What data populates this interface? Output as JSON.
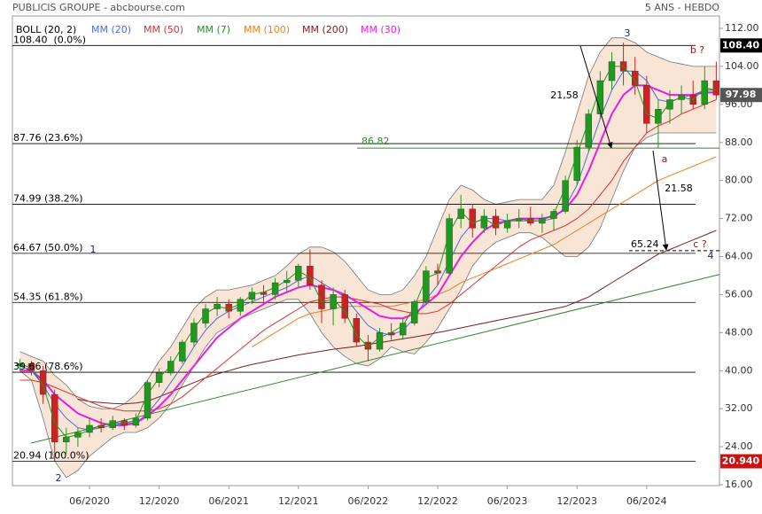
{
  "chart_data": {
    "type": "candlestick",
    "title": "PUBLICIS GROUPE - abcbourse.com",
    "subtitle": "5 ANS - HEBDO",
    "categories": [
      null,
      null,
      null,
      null,
      null,
      null,
      "06/2020",
      null,
      null,
      null,
      null,
      null,
      "12/2020",
      null,
      null,
      null,
      null,
      null,
      "06/2021",
      null,
      null,
      null,
      null,
      null,
      "12/2021",
      null,
      null,
      null,
      null,
      null,
      "06/2022",
      null,
      null,
      null,
      null,
      null,
      "12/2022",
      null,
      null,
      null,
      null,
      null,
      "06/2023",
      null,
      null,
      null,
      null,
      null,
      "12/2023",
      null,
      null,
      null,
      null,
      null,
      "06/2024",
      null,
      null,
      null,
      null,
      null,
      null
    ],
    "candles": {
      "up_color": "#1e9a1e",
      "down_color": "#cc2222",
      "open": [
        41,
        41.5,
        40,
        35,
        25,
        26,
        27,
        28.5,
        28,
        29.5,
        28.5,
        30,
        37.5,
        39.5,
        42,
        46,
        50,
        53,
        54,
        52.5,
        55,
        56.5,
        56,
        58.5,
        59,
        62,
        58,
        53,
        56,
        51,
        46,
        44.5,
        48,
        47.5,
        50,
        54.5,
        61,
        60.5,
        72,
        74,
        70,
        72.5,
        70,
        71.5,
        72,
        71,
        72,
        73.5,
        80,
        87,
        94,
        101,
        105,
        103,
        100,
        92,
        95,
        97,
        98,
        96,
        101
      ],
      "high": [
        42.5,
        42,
        41,
        36,
        28,
        28,
        30,
        30,
        30.5,
        30,
        31,
        38,
        40.5,
        43,
        46.5,
        51,
        54,
        55.5,
        55,
        55.5,
        57.5,
        58,
        59.5,
        61,
        62.5,
        65.5,
        59,
        57.5,
        57,
        52,
        47.5,
        49,
        50,
        51,
        55,
        62,
        62.5,
        73,
        77,
        75,
        74,
        74,
        73,
        74,
        74.5,
        73,
        74,
        81,
        88.5,
        95,
        103,
        107,
        109,
        106,
        102,
        97,
        99,
        100,
        101,
        104,
        105
      ],
      "low": [
        40,
        39,
        33,
        21,
        22.5,
        24,
        26,
        27,
        27.5,
        27.5,
        28,
        29.5,
        36.5,
        39,
        41.5,
        45,
        49,
        51.5,
        51,
        51.5,
        54,
        54.5,
        55,
        56.5,
        57.5,
        57,
        50,
        49.5,
        50,
        45,
        42,
        44,
        46.5,
        46.5,
        49.5,
        54,
        58,
        60,
        70,
        68,
        69,
        68.5,
        69,
        70,
        70.5,
        69,
        69.5,
        73,
        79,
        86,
        93,
        99,
        100,
        98,
        90,
        86.8,
        92,
        94,
        95,
        95,
        97
      ],
      "close": [
        41.5,
        40,
        35,
        25,
        26,
        27,
        28.5,
        28,
        29.5,
        28.5,
        30,
        37.5,
        39.5,
        42,
        46,
        50,
        53,
        54,
        52.5,
        55,
        56.5,
        56,
        58.5,
        59,
        62,
        58,
        53,
        56,
        51,
        46,
        44.5,
        48,
        47.5,
        50,
        54.5,
        61,
        60.5,
        72,
        74,
        70,
        72.5,
        70,
        71.5,
        72,
        71,
        72,
        73.5,
        80,
        87,
        94,
        101,
        105,
        103,
        100,
        92,
        95,
        97,
        98,
        96,
        101,
        97.98
      ]
    },
    "bollinger": {
      "name": "BOLL (20, 2)",
      "color": "#000000",
      "line_color": "#777777",
      "band_color": "#f6dcc8",
      "upper": [
        44,
        43,
        42,
        39,
        37,
        34,
        32.5,
        32,
        32,
        33,
        35,
        38,
        42,
        45,
        49,
        53,
        55.5,
        57,
        57,
        57.5,
        58,
        59,
        60,
        62,
        64.5,
        66,
        66,
        65,
        63,
        60,
        57,
        56,
        56,
        57,
        60,
        64,
        70,
        76,
        79,
        78,
        76,
        75,
        75.5,
        76,
        76,
        76,
        79,
        86,
        94,
        102,
        107,
        110,
        110,
        109,
        107,
        106,
        105,
        104.5,
        104,
        104,
        104
      ],
      "lower": [
        40,
        38,
        30,
        21,
        17.5,
        19,
        22,
        24,
        26,
        27,
        27,
        28,
        30,
        33,
        37,
        41,
        45,
        48,
        49.5,
        51,
        52,
        53,
        54,
        55,
        55,
        52,
        48,
        45,
        43,
        41.5,
        41,
        42.5,
        45,
        44,
        43.5,
        46,
        49,
        53,
        57,
        62,
        65,
        67,
        68,
        69,
        69,
        68,
        66,
        64,
        64,
        66,
        70,
        76,
        82,
        87,
        89,
        90,
        90,
        90,
        90,
        90,
        90
      ]
    },
    "series": [
      {
        "name": "MM (20)",
        "color": "#4a6fe0",
        "values": [
          41,
          40,
          37,
          33,
          30,
          28,
          27.5,
          28,
          28.5,
          29,
          29,
          31,
          34,
          37.5,
          41,
          45,
          48.5,
          51,
          52.5,
          53.5,
          54.5,
          55.5,
          56.5,
          57.5,
          59,
          60,
          58.5,
          57,
          55.5,
          52.5,
          49.5,
          48,
          47.5,
          48.5,
          51,
          55,
          58,
          63,
          68,
          71,
          72,
          72,
          71.5,
          71.5,
          71.5,
          71.5,
          72,
          74.5,
          79,
          86,
          93,
          99,
          103,
          103,
          101,
          97,
          96.5,
          97.5,
          98,
          99,
          99
        ]
      },
      {
        "name": "MM (50)",
        "color": "#e03030",
        "values": [
          38,
          38,
          37.5,
          36.5,
          35.5,
          34.5,
          33.5,
          32.5,
          32,
          31.5,
          31.5,
          31.5,
          32,
          33,
          34.5,
          36.5,
          38.5,
          40.5,
          42.5,
          44.5,
          46.5,
          48.5,
          50,
          51.5,
          53,
          54.5,
          55,
          55.5,
          55.5,
          55,
          54.5,
          54,
          53,
          52.5,
          52,
          52,
          52.5,
          54,
          56,
          58,
          60,
          62,
          64,
          66,
          67.5,
          68.5,
          69.5,
          70.5,
          72,
          74,
          77,
          80,
          84,
          87,
          90,
          91.5,
          92.5,
          94,
          95,
          96,
          97
        ]
      },
      {
        "name": "MM (7)",
        "color": "#1a9a1a",
        "values": [
          41.5,
          40.5,
          37,
          29,
          26,
          26.5,
          27.5,
          28.5,
          29,
          29,
          29.5,
          35,
          38.5,
          41,
          45,
          49,
          52,
          53.5,
          53,
          54,
          56,
          56.5,
          57.5,
          59,
          61,
          59.5,
          54.5,
          55,
          52.5,
          47.5,
          45,
          47,
          48,
          49.5,
          53.5,
          59.5,
          60.5,
          69,
          73.5,
          71,
          72,
          70.5,
          71.5,
          72,
          71.5,
          71.5,
          73,
          78.5,
          85.5,
          92.5,
          99.5,
          104,
          104,
          101,
          94,
          93,
          96.5,
          97.5,
          97,
          99.5,
          99
        ]
      },
      {
        "name": "MM (100)",
        "color": "#f07d1e",
        "values": [
          null,
          null,
          null,
          null,
          null,
          null,
          null,
          null,
          null,
          null,
          null,
          null,
          null,
          null,
          null,
          null,
          null,
          null,
          null,
          null,
          45,
          46.5,
          48,
          49.5,
          51,
          52,
          52.5,
          53,
          53.5,
          53.5,
          53.5,
          53.5,
          53.5,
          54,
          54.5,
          55,
          56,
          57,
          58.5,
          59.5,
          60.5,
          61.5,
          62.5,
          63.5,
          64.5,
          65.5,
          66.5,
          68,
          69.5,
          71,
          72.5,
          74,
          75.5,
          77,
          78.5,
          80,
          81,
          82,
          83,
          84,
          85
        ]
      },
      {
        "name": "MM (200)",
        "color": "#7a1f1f",
        "values": [
          null,
          null,
          null,
          null,
          null,
          34,
          33.5,
          33.3,
          33.1,
          33,
          33.2,
          33.6,
          34.5,
          35.5,
          36.5,
          37.5,
          38.5,
          39.3,
          40,
          40.7,
          41.3,
          41.8,
          42.3,
          42.8,
          43.3,
          43.7,
          44.1,
          44.5,
          44.8,
          45.1,
          45.5,
          45.9,
          46.3,
          46.7,
          47.1,
          47.5,
          48,
          48.5,
          49,
          49.5,
          50,
          50.5,
          51,
          51.5,
          52,
          52.5,
          53,
          53.5,
          54.5,
          55.5,
          57,
          58.5,
          60,
          61.5,
          63,
          64.5,
          65.5,
          66.5,
          67.5,
          68.5,
          69.5
        ]
      },
      {
        "name": "MM (30)",
        "color": "#e61ee6",
        "values": [
          40,
          40,
          38,
          35,
          33,
          31,
          30,
          29,
          28.5,
          28.5,
          29,
          30.5,
          32.5,
          35,
          38,
          41,
          44,
          47,
          49,
          51,
          52.5,
          54,
          55.5,
          56.5,
          57.5,
          58,
          57.5,
          57,
          56,
          54.5,
          53,
          51.5,
          51,
          51,
          52,
          54,
          56,
          60,
          64,
          67,
          69.5,
          71,
          71.5,
          72,
          72,
          72,
          72.5,
          74,
          77,
          82,
          88,
          94,
          98,
          100,
          100,
          99,
          98,
          98,
          98,
          98.5,
          98.5
        ]
      }
    ],
    "ylim": [
      16,
      112
    ],
    "yticks": [
      {
        "value": 16,
        "label": "16.00"
      },
      {
        "value": 24,
        "label": "24.00"
      },
      {
        "value": 32,
        "label": "32.00"
      },
      {
        "value": 40,
        "label": "40.00"
      },
      {
        "value": 48,
        "label": "48.00"
      },
      {
        "value": 56,
        "label": "56.00"
      },
      {
        "value": 64,
        "label": "64.00"
      },
      {
        "value": 72,
        "label": "72.00"
      },
      {
        "value": 80,
        "label": "80.00"
      },
      {
        "value": 88,
        "label": "88.00"
      },
      {
        "value": 96,
        "label": "96.00"
      },
      {
        "value": 104,
        "label": "104.00"
      },
      {
        "value": 112,
        "label": "112.00"
      }
    ],
    "levels": [
      {
        "value": 108.4,
        "label": "108.40  (0.0%)"
      },
      {
        "value": 87.76,
        "label": "87.76 (23.6%)"
      },
      {
        "value": 74.99,
        "label": "74.99 (38.2%)"
      },
      {
        "value": 64.67,
        "label": "64.67 (50.0%)"
      },
      {
        "value": 54.35,
        "label": "54.35 (61.8%)"
      },
      {
        "value": 39.66,
        "label": "39.66 (78.6%)"
      },
      {
        "value": 20.94,
        "label": "20.94 (100.0%)"
      }
    ],
    "price_tags": [
      {
        "value": 108.4,
        "label": "108.40",
        "color": "#000000"
      },
      {
        "value": 97.98,
        "label": "97.98",
        "color": "#555555"
      },
      {
        "value": 20.94,
        "label": "20.940",
        "color": "#cc1111"
      }
    ],
    "targets": [
      {
        "value": 86.82,
        "color": "#2e8b2e"
      },
      {
        "value": 65.24,
        "color": "#000000"
      }
    ],
    "annotations": {
      "waves": [
        "1",
        "2",
        "3",
        "4"
      ],
      "corrections": [
        "a",
        "b ?",
        "c ?"
      ],
      "moves": [
        "21,58",
        "21.58"
      ]
    }
  }
}
